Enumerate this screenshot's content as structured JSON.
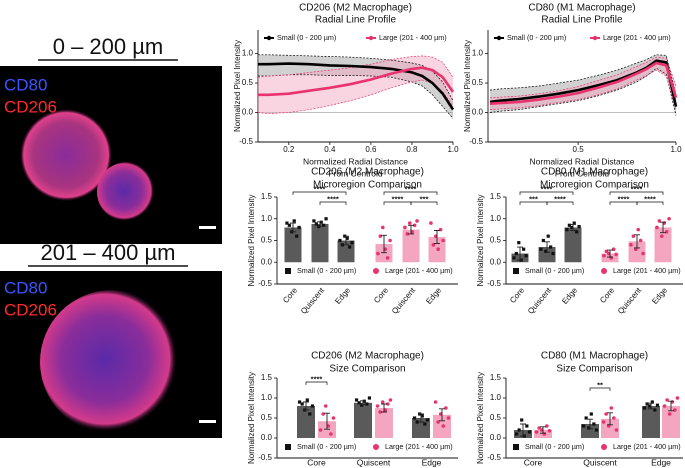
{
  "panels": [
    {
      "title": "0 – 200 µm",
      "stain_labels": [
        "CD80",
        "CD206"
      ]
    },
    {
      "title": "201 – 400 µm",
      "stain_labels": [
        "CD80",
        "CD206"
      ]
    }
  ],
  "chart_data": [
    {
      "type": "line",
      "title": [
        "CD206 (M2 Macrophage)",
        "Radial Line Profile"
      ],
      "xlabel": [
        "Normalized Radial Distance",
        "From Centroid"
      ],
      "ylabel": "Normalized Pixel Intensity",
      "x": [
        0.05,
        0.1,
        0.2,
        0.3,
        0.4,
        0.5,
        0.6,
        0.7,
        0.8,
        0.85,
        0.9,
        0.95,
        1.0
      ],
      "xlim": [
        0.05,
        1.0
      ],
      "xticks": [
        0.2,
        0.4,
        0.6,
        0.8,
        {
          "value": 1,
          "label": "1.0"
        }
      ],
      "ylim": [
        -0.5,
        1.4
      ],
      "yticks": [
        -0.5,
        {
          "value": 0,
          "label": "0.0"
        },
        0.5,
        {
          "value": 1,
          "label": "1.0"
        }
      ],
      "legend": "top",
      "series": [
        {
          "name": "Small (0 - 200 µm)",
          "color": "#000000",
          "band_color": "#9a9a9a",
          "values": [
            0.82,
            0.82,
            0.83,
            0.82,
            0.8,
            0.79,
            0.77,
            0.74,
            0.68,
            0.62,
            0.5,
            0.32,
            0.05
          ],
          "lower": [
            0.62,
            0.62,
            0.64,
            0.64,
            0.63,
            0.63,
            0.62,
            0.6,
            0.52,
            0.45,
            0.3,
            0.1,
            -0.1
          ],
          "upper": [
            0.98,
            0.98,
            0.97,
            0.96,
            0.95,
            0.94,
            0.92,
            0.89,
            0.84,
            0.8,
            0.7,
            0.52,
            0.2
          ]
        },
        {
          "name": "Large (201 - 400 µm)",
          "color": "#e8336d",
          "band_color": "#f2a0bc",
          "values": [
            0.3,
            0.3,
            0.32,
            0.37,
            0.42,
            0.48,
            0.56,
            0.66,
            0.74,
            0.76,
            0.72,
            0.6,
            0.35
          ],
          "lower": [
            0.0,
            -0.02,
            0.0,
            0.05,
            0.12,
            0.2,
            0.3,
            0.42,
            0.52,
            0.55,
            0.5,
            0.35,
            0.1
          ],
          "upper": [
            0.6,
            0.62,
            0.64,
            0.68,
            0.72,
            0.76,
            0.82,
            0.9,
            0.95,
            0.96,
            0.94,
            0.85,
            0.6
          ]
        }
      ]
    },
    {
      "type": "line",
      "title": [
        "CD80 (M1 Macrophage)",
        "Radial Line Profile"
      ],
      "xlabel": [
        "Normalized Radial Distance",
        "From Centroid"
      ],
      "ylabel": "Normalized Pixel Intensity",
      "x": [
        0.05,
        0.1,
        0.2,
        0.3,
        0.4,
        0.5,
        0.6,
        0.7,
        0.8,
        0.85,
        0.9,
        0.95,
        1.0
      ],
      "xlim": [
        0.04,
        1.0
      ],
      "xticks": [
        0.5,
        {
          "value": 1,
          "label": "1.0"
        }
      ],
      "ylim": [
        -0.5,
        1.4
      ],
      "yticks": [
        -0.5,
        {
          "value": 0,
          "label": "0.0"
        },
        0.5,
        {
          "value": 1,
          "label": "1.0"
        }
      ],
      "legend": "top",
      "series": [
        {
          "name": "Small (0 - 200 µm)",
          "color": "#000000",
          "band_color": "#9a9a9a",
          "values": [
            0.18,
            0.2,
            0.23,
            0.27,
            0.32,
            0.38,
            0.46,
            0.55,
            0.68,
            0.76,
            0.88,
            0.85,
            0.1
          ],
          "lower": [
            0.0,
            0.02,
            0.05,
            0.1,
            0.15,
            0.2,
            0.28,
            0.38,
            0.52,
            0.62,
            0.75,
            0.65,
            -0.05
          ],
          "upper": [
            0.38,
            0.4,
            0.42,
            0.45,
            0.5,
            0.55,
            0.63,
            0.72,
            0.84,
            0.9,
            0.98,
            0.97,
            0.3
          ]
        },
        {
          "name": "Large (201 - 400 µm)",
          "color": "#e8336d",
          "band_color": "#f2a0bc",
          "values": [
            0.15,
            0.16,
            0.18,
            0.22,
            0.27,
            0.33,
            0.42,
            0.52,
            0.66,
            0.74,
            0.84,
            0.8,
            0.25
          ],
          "lower": [
            0.05,
            0.06,
            0.08,
            0.12,
            0.17,
            0.22,
            0.3,
            0.4,
            0.55,
            0.63,
            0.72,
            0.62,
            0.05
          ],
          "upper": [
            0.25,
            0.26,
            0.28,
            0.32,
            0.37,
            0.44,
            0.54,
            0.64,
            0.78,
            0.85,
            0.94,
            0.92,
            0.45
          ]
        }
      ]
    },
    {
      "type": "bar",
      "grouping": "series",
      "title": [
        "CD206 (M2 Macrophage)",
        "Microregion Comparison"
      ],
      "ylabel": "Normalized Pixel Intensity",
      "categories": [
        "Core",
        "Quiscent",
        "Edge"
      ],
      "ylim": [
        -0.5,
        1.5
      ],
      "yticks": [
        -0.5,
        {
          "value": 0,
          "label": "0.0"
        },
        0.5,
        {
          "value": 1,
          "label": "1.0"
        },
        1.5
      ],
      "legend": "bottom",
      "series": [
        {
          "name": "Small (0 - 200 µm)",
          "color": "#5a5a5a",
          "point_color": "#111111",
          "values": [
            0.8,
            0.88,
            0.5
          ],
          "errors": [
            0.1,
            0.05,
            0.1
          ],
          "points": [
            [
              0.9,
              0.85,
              0.7,
              0.95,
              0.6,
              0.8
            ],
            [
              0.95,
              0.88,
              0.82,
              0.92,
              0.85,
              1.0
            ],
            [
              0.5,
              0.4,
              0.6,
              0.55,
              0.35,
              0.45
            ]
          ]
        },
        {
          "name": "Large (201 - 400 µm)",
          "color": "#f4a6c0",
          "point_color": "#e8336d",
          "values": [
            0.42,
            0.75,
            0.58
          ],
          "errors": [
            0.2,
            0.1,
            0.15
          ],
          "points": [
            [
              0.2,
              0.6,
              0.8,
              0.3,
              0.1,
              0.5
            ],
            [
              0.8,
              0.65,
              0.9,
              0.7,
              0.85,
              0.95
            ],
            [
              0.9,
              0.4,
              0.6,
              0.3,
              0.75,
              0.5
            ]
          ]
        }
      ],
      "significance": [
        "****",
        "****",
        "****",
        "****",
        "***"
      ]
    },
    {
      "type": "bar",
      "grouping": "series",
      "title": [
        "CD80 (M1 Macrophage)",
        "Microregion Comparison"
      ],
      "ylabel": "Normalized Pixel Intensity",
      "categories": [
        "Core",
        "Quiscent",
        "Edge"
      ],
      "ylim": [
        -0.5,
        1.5
      ],
      "yticks": [
        -0.5,
        {
          "value": 0,
          "label": "0.0"
        },
        0.5,
        {
          "value": 1,
          "label": "1.0"
        },
        1.5
      ],
      "legend": "bottom",
      "series": [
        {
          "name": "Small (0 - 200 µm)",
          "color": "#5a5a5a",
          "point_color": "#111111",
          "values": [
            0.2,
            0.35,
            0.8
          ],
          "errors": [
            0.15,
            0.12,
            0.07
          ],
          "points": [
            [
              0.1,
              0.2,
              0.45,
              0.05,
              0.3,
              0.15
            ],
            [
              0.3,
              0.5,
              0.25,
              0.6,
              0.35,
              0.2
            ],
            [
              0.75,
              0.85,
              0.8,
              0.9,
              0.7,
              0.82
            ]
          ]
        },
        {
          "name": "Large (201 - 400 µm)",
          "color": "#f4a6c0",
          "point_color": "#e8336d",
          "values": [
            0.2,
            0.48,
            0.8
          ],
          "errors": [
            0.08,
            0.15,
            0.12
          ],
          "points": [
            [
              0.15,
              0.25,
              0.2,
              0.1,
              0.3,
              0.18
            ],
            [
              0.4,
              0.6,
              0.3,
              0.75,
              0.5,
              0.2
            ],
            [
              0.8,
              0.95,
              0.6,
              0.9,
              0.7,
              1.0
            ]
          ]
        }
      ],
      "significance": [
        "****",
        "***",
        "****",
        "****",
        "****",
        "****"
      ]
    },
    {
      "type": "bar",
      "grouping": "category",
      "title": [
        "CD206 (M2 Macrophage)",
        "Size Comparison"
      ],
      "ylabel": "Normalized Pixel Intensity",
      "categories": [
        "Core",
        "Quiscent",
        "Edge"
      ],
      "ylim": [
        -0.5,
        1.5
      ],
      "yticks": [
        -0.5,
        {
          "value": 0,
          "label": "0.0"
        },
        0.5,
        {
          "value": 1,
          "label": "1.0"
        },
        1.5
      ],
      "legend": "bottom",
      "series": [
        {
          "name": "Small (0 - 200 µm)",
          "color": "#5a5a5a",
          "point_color": "#111111",
          "values": [
            0.8,
            0.88,
            0.5
          ],
          "errors": [
            0.1,
            0.05,
            0.1
          ],
          "points": [
            [
              0.9,
              0.85,
              0.7,
              0.95,
              0.6,
              0.8
            ],
            [
              0.95,
              0.88,
              0.82,
              0.92,
              0.85,
              1.0
            ],
            [
              0.5,
              0.4,
              0.6,
              0.55,
              0.35,
              0.45
            ]
          ]
        },
        {
          "name": "Large (201 - 400 µm)",
          "color": "#f4a6c0",
          "point_color": "#e8336d",
          "values": [
            0.42,
            0.75,
            0.58
          ],
          "errors": [
            0.2,
            0.1,
            0.15
          ],
          "points": [
            [
              0.2,
              0.6,
              0.8,
              0.3,
              0.1,
              0.5
            ],
            [
              0.8,
              0.65,
              0.9,
              0.7,
              0.85,
              0.95
            ],
            [
              0.9,
              0.4,
              0.6,
              0.3,
              0.75,
              0.5
            ]
          ]
        }
      ],
      "significance": [
        "****"
      ]
    },
    {
      "type": "bar",
      "grouping": "category",
      "title": [
        "CD80 (M1 Macrophage)",
        "Size Comparison"
      ],
      "ylabel": "Normalized Pixel Intensity",
      "categories": [
        "Core",
        "Quiscent",
        "Edge"
      ],
      "ylim": [
        -0.5,
        1.5
      ],
      "yticks": [
        -0.5,
        {
          "value": 0,
          "label": "0.0"
        },
        0.5,
        {
          "value": 1,
          "label": "1.0"
        },
        1.5
      ],
      "legend": "bottom",
      "series": [
        {
          "name": "Small (0 - 200 µm)",
          "color": "#5a5a5a",
          "point_color": "#111111",
          "values": [
            0.2,
            0.35,
            0.8
          ],
          "errors": [
            0.15,
            0.12,
            0.07
          ],
          "points": [
            [
              0.1,
              0.2,
              0.45,
              0.05,
              0.3,
              0.15
            ],
            [
              0.3,
              0.5,
              0.25,
              0.6,
              0.35,
              0.2
            ],
            [
              0.75,
              0.85,
              0.8,
              0.9,
              0.7,
              0.82
            ]
          ]
        },
        {
          "name": "Large (201 - 400 µm)",
          "color": "#f4a6c0",
          "point_color": "#e8336d",
          "values": [
            0.2,
            0.48,
            0.8
          ],
          "errors": [
            0.08,
            0.15,
            0.12
          ],
          "points": [
            [
              0.15,
              0.25,
              0.2,
              0.1,
              0.3,
              0.18
            ],
            [
              0.4,
              0.6,
              0.3,
              0.75,
              0.5,
              0.2
            ],
            [
              0.8,
              0.95,
              0.6,
              0.9,
              0.7,
              1.0
            ]
          ]
        }
      ],
      "significance": [
        "**"
      ]
    }
  ]
}
